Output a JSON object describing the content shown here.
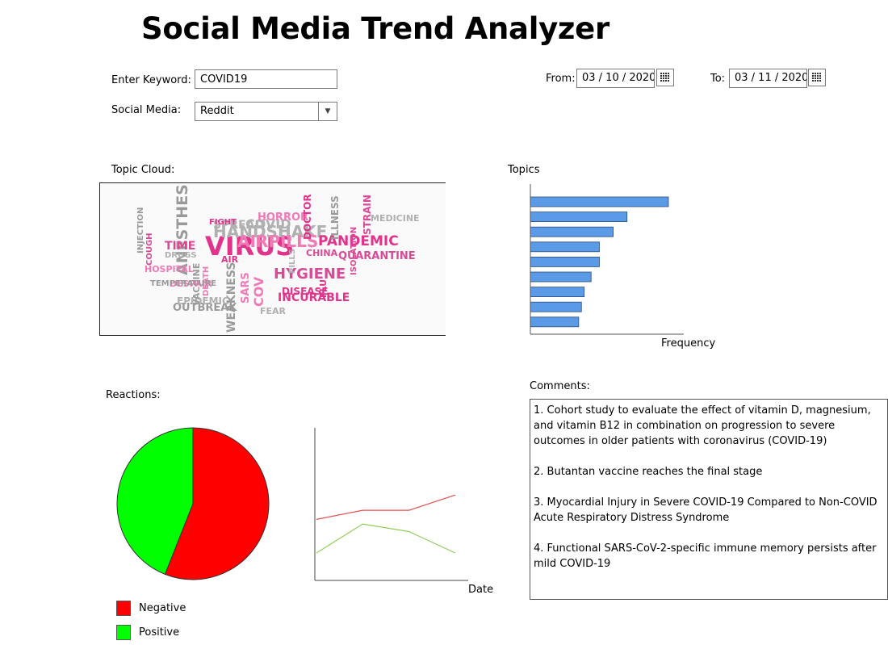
{
  "header": {
    "title": "Social Media Trend Analyzer"
  },
  "search": {
    "keyword_label": "Enter Keyword:",
    "keyword_value": "COVID19",
    "social_label": "Social Media:",
    "social_value": "Reddit"
  },
  "dates": {
    "from_label": "From:",
    "from_value": "03 / 10 / 2020",
    "to_label": "To:",
    "to_value": "03 / 11 / 2020"
  },
  "topic_cloud": {
    "label": "Topic Cloud:",
    "colors": [
      "#e0338b",
      "#b0b0b0",
      "#f07ab5",
      "#9a9a9a",
      "#d84a95"
    ],
    "words": [
      {
        "text": "VIRUS",
        "weight": 1.0
      },
      {
        "text": "HANDSHAKE",
        "weight": 0.55
      },
      {
        "text": "AIRPILLS",
        "weight": 0.55
      },
      {
        "text": "ANESTHESIA",
        "weight": 0.5
      },
      {
        "text": "HYGIENE",
        "weight": 0.48
      },
      {
        "text": "PANDEMIC",
        "weight": 0.42
      },
      {
        "text": "COVID",
        "weight": 0.4
      },
      {
        "text": "COV",
        "weight": 0.4
      },
      {
        "text": "WEAKNESS",
        "weight": 0.32
      },
      {
        "text": "TIME",
        "weight": 0.32
      },
      {
        "text": "INCURABLE",
        "weight": 0.32
      },
      {
        "text": "SPREAD",
        "weight": 0.3
      },
      {
        "text": "HORROR",
        "weight": 0.28
      },
      {
        "text": "OUTBREAK",
        "weight": 0.28
      },
      {
        "text": "QUARANTINE",
        "weight": 0.25
      },
      {
        "text": "DISEASE",
        "weight": 0.24
      },
      {
        "text": "EPIDEMIC",
        "weight": 0.22
      },
      {
        "text": "SARS",
        "weight": 0.26
      },
      {
        "text": "ILLNESS",
        "weight": 0.24
      },
      {
        "text": "STRAIN",
        "weight": 0.22
      },
      {
        "text": "DOCTOR",
        "weight": 0.22
      },
      {
        "text": "MEDICINE",
        "weight": 0.2
      },
      {
        "text": "HOSPITAL",
        "weight": 0.18
      },
      {
        "text": "VACCINE",
        "weight": 0.18
      },
      {
        "text": "CHINA",
        "weight": 0.18
      },
      {
        "text": "FLU",
        "weight": 0.2
      },
      {
        "text": "FEAR",
        "weight": 0.18
      },
      {
        "text": "DESPAIR",
        "weight": 0.18
      },
      {
        "text": "INJECTION",
        "weight": 0.16
      },
      {
        "text": "COUGH",
        "weight": 0.16
      },
      {
        "text": "FIGHT",
        "weight": 0.16
      },
      {
        "text": "DRUGS",
        "weight": 0.16
      },
      {
        "text": "DEATH",
        "weight": 0.16
      },
      {
        "text": "TEMPERATURE",
        "weight": 0.14
      },
      {
        "text": "ISOLATION",
        "weight": 0.14
      },
      {
        "text": "AIR",
        "weight": 0.2
      },
      {
        "text": "PILLS",
        "weight": 0.16
      }
    ]
  },
  "topics_chart": {
    "label": "Topics",
    "chart_data": {
      "type": "bar",
      "orientation": "horizontal",
      "values": [
        100,
        70,
        60,
        50,
        50,
        44,
        39,
        37,
        35
      ],
      "xlabel": "Frequency",
      "bar_color": "#5b9ae6"
    }
  },
  "reactions": {
    "label": "Reactions:",
    "chart_data": {
      "type": "pie",
      "slices": [
        {
          "name": "Negative",
          "value": 56,
          "color": "#ff0000"
        },
        {
          "name": "Positive",
          "value": 44,
          "color": "#00ff00"
        }
      ]
    },
    "legend": [
      {
        "label": "Negative",
        "color": "#ff0000"
      },
      {
        "label": "Positive",
        "color": "#00ff00"
      }
    ]
  },
  "reactions_trend": {
    "chart_data": {
      "type": "line",
      "xlabel": "Date",
      "series": [
        {
          "color": "#e05050",
          "values": [
            40,
            46,
            46,
            56
          ]
        },
        {
          "color": "#8fce5a",
          "values": [
            18,
            37,
            32,
            18
          ]
        }
      ],
      "ylim": [
        0,
        100
      ]
    }
  },
  "comments": {
    "label": "Comments:",
    "items": [
      "1. Cohort study to evaluate the effect of vitamin D, magnesium, and vitamin B12 in combination on progression to severe outcomes in older patients with coronavirus (COVID-19)",
      "2. Butantan vaccine reaches the final stage",
      "3. Myocardial Injury in Severe COVID-19 Compared to Non-COVID Acute Respiratory Distress Syndrome",
      "4. Functional SARS-CoV-2-specific immune memory persists after mild COVID-19"
    ]
  }
}
